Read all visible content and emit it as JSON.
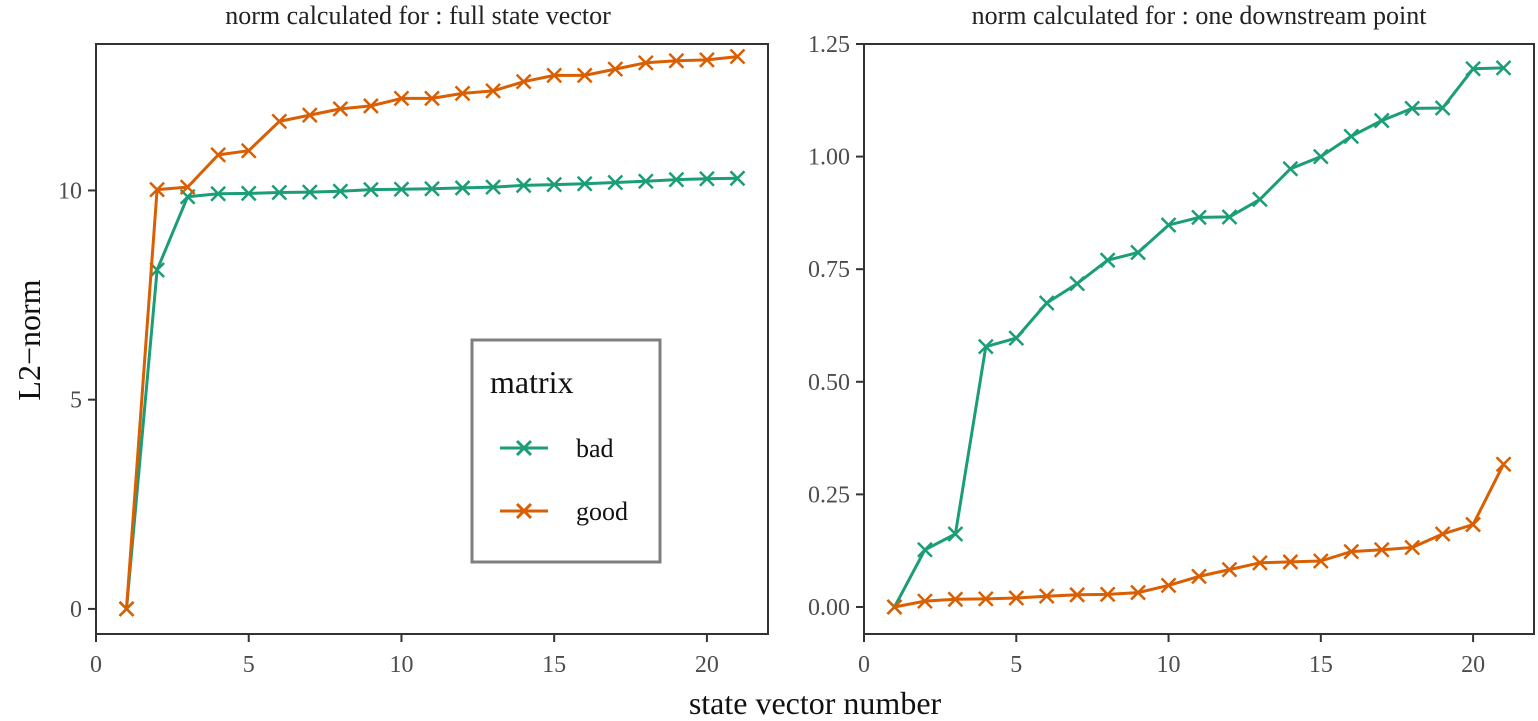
{
  "chart_data": {
    "type": "line",
    "xlabel": "state vector number",
    "ylabel": "L2−norm",
    "colors": {
      "bad": "#1b9e77",
      "good": "#d95f02"
    },
    "legend": {
      "title": "matrix",
      "placement": "inside-left-panel-bottom-right",
      "entries": [
        {
          "name": "bad",
          "color": "#1b9e77"
        },
        {
          "name": "good",
          "color": "#d95f02"
        }
      ]
    },
    "panels": [
      {
        "title": "norm calculated for : full state vector",
        "xlim": [
          0,
          22
        ],
        "ylim": [
          -0.6,
          13.5
        ],
        "xticks": [
          0,
          5,
          10,
          15,
          20
        ],
        "xtick_labels": [
          "0",
          "5",
          "10",
          "15",
          "20"
        ],
        "yticks": [
          0,
          5,
          10
        ],
        "ytick_labels": [
          "0",
          "5",
          "10"
        ],
        "grid": false,
        "x": [
          1,
          2,
          3,
          4,
          5,
          6,
          7,
          8,
          9,
          10,
          11,
          12,
          13,
          14,
          15,
          16,
          17,
          18,
          19,
          20,
          21
        ],
        "series": [
          {
            "name": "bad",
            "values": [
              0,
              8.1,
              9.85,
              9.92,
              9.93,
              9.95,
              9.96,
              9.98,
              10.02,
              10.03,
              10.04,
              10.06,
              10.08,
              10.12,
              10.14,
              10.16,
              10.19,
              10.22,
              10.26,
              10.28,
              10.29
            ]
          },
          {
            "name": "good",
            "values": [
              0,
              10.02,
              10.08,
              10.85,
              10.95,
              11.65,
              11.8,
              11.95,
              12.02,
              12.2,
              12.2,
              12.32,
              12.38,
              12.6,
              12.75,
              12.75,
              12.9,
              13.05,
              13.1,
              13.12,
              13.2
            ]
          }
        ]
      },
      {
        "title": "norm calculated for : one downstream point",
        "xlim": [
          0,
          22
        ],
        "ylim": [
          -0.06,
          1.25
        ],
        "xticks": [
          0,
          5,
          10,
          15,
          20
        ],
        "xtick_labels": [
          "0",
          "5",
          "10",
          "15",
          "20"
        ],
        "yticks": [
          0,
          0.25,
          0.5,
          0.75,
          1,
          1.25
        ],
        "ytick_labels": [
          "0.00",
          "0.25",
          "0.50",
          "0.75",
          "1.00",
          "1.25"
        ],
        "grid": false,
        "x": [
          1,
          2,
          3,
          4,
          5,
          6,
          7,
          8,
          9,
          10,
          11,
          12,
          13,
          14,
          15,
          16,
          17,
          18,
          19,
          20,
          21
        ],
        "series": [
          {
            "name": "bad",
            "values": [
              0,
              0.127,
              0.162,
              0.578,
              0.597,
              0.675,
              0.718,
              0.77,
              0.787,
              0.848,
              0.865,
              0.866,
              0.905,
              0.973,
              1.0,
              1.045,
              1.08,
              1.107,
              1.108,
              1.195,
              1.197
            ]
          },
          {
            "name": "good",
            "values": [
              0,
              0.013,
              0.017,
              0.018,
              0.02,
              0.024,
              0.027,
              0.028,
              0.032,
              0.048,
              0.068,
              0.083,
              0.098,
              0.1,
              0.102,
              0.123,
              0.127,
              0.132,
              0.162,
              0.183,
              0.317
            ]
          }
        ]
      }
    ]
  }
}
